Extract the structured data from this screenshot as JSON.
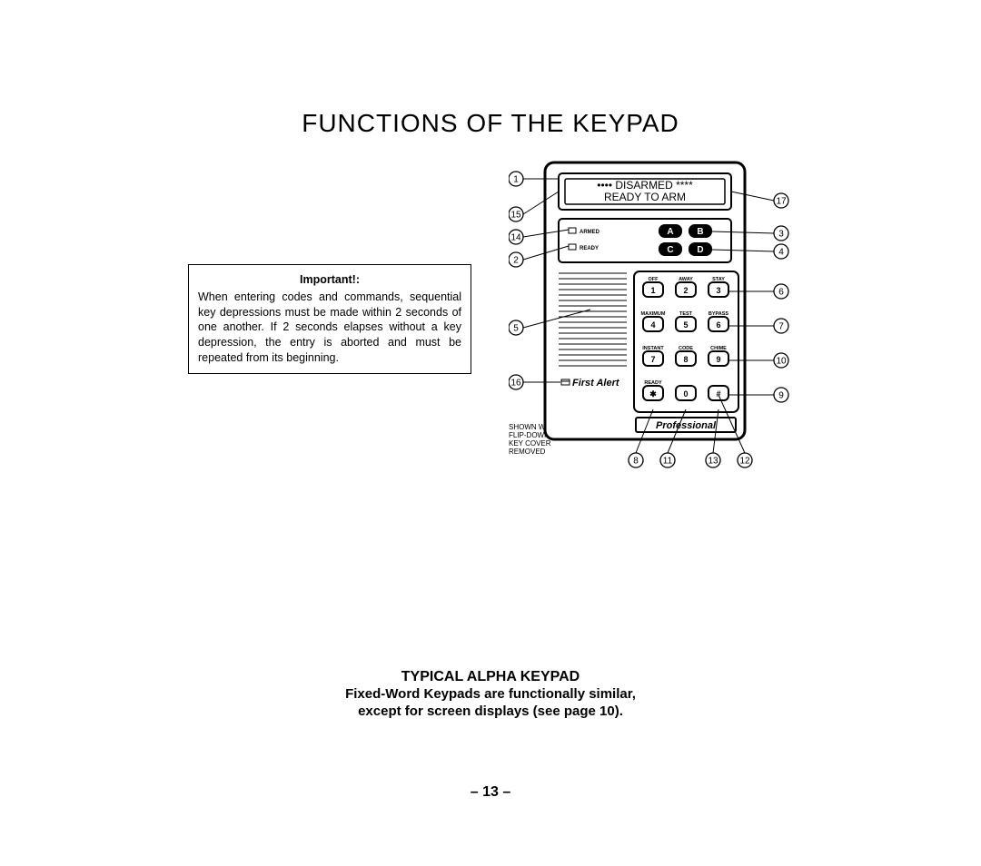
{
  "page": {
    "title": "FUNCTIONS OF THE KEYPAD",
    "number": "– 13 –"
  },
  "important": {
    "heading": "Important!:",
    "body": "When entering codes and commands, sequential key depressions must be made within 2 seconds of one another. If 2 seconds elapses without a key depression, the entry is aborted and must be repeated from its beginning."
  },
  "shown_note": {
    "l1": "SHOWN WITH",
    "l2": "FLIP-DOWN",
    "l3": "KEY COVER",
    "l4": "REMOVED"
  },
  "keypad": {
    "display": {
      "line1": "•••• DISARMED ****",
      "line2": "READY TO ARM"
    },
    "leds": {
      "armed": "ARMED",
      "ready": "READY"
    },
    "func_keys": {
      "a": "A",
      "b": "B",
      "c": "C",
      "d": "D"
    },
    "rows": [
      {
        "labels": [
          "OFF",
          "AWAY",
          "STAY"
        ],
        "keys": [
          "1",
          "2",
          "3"
        ]
      },
      {
        "labels": [
          "MAXIMUM",
          "TEST",
          "BYPASS"
        ],
        "keys": [
          "4",
          "5",
          "6"
        ]
      },
      {
        "labels": [
          "INSTANT",
          "CODE",
          "CHIME"
        ],
        "keys": [
          "7",
          "8",
          "9"
        ]
      },
      {
        "labels": [
          "READY",
          "",
          ""
        ],
        "keys": [
          "✱",
          "0",
          "#"
        ]
      }
    ],
    "brand": "First Alert",
    "badge": "Professional"
  },
  "callouts": {
    "left": [
      "1",
      "15",
      "14",
      "2",
      "5",
      "16"
    ],
    "right": [
      "17",
      "3",
      "4",
      "6",
      "7",
      "10",
      "9"
    ],
    "bottom": [
      "8",
      "11",
      "13",
      "12"
    ]
  },
  "caption": {
    "title": "TYPICAL ALPHA KEYPAD",
    "line1": "Fixed-Word Keypads are functionally similar,",
    "line2": "except for screen displays (see page 10)."
  },
  "style": {
    "stroke": "#000000",
    "bg": "#ffffff",
    "display_font": 12,
    "label_font": 5.5,
    "key_font": 9,
    "callout_font": 10,
    "callout_radius": 8
  }
}
